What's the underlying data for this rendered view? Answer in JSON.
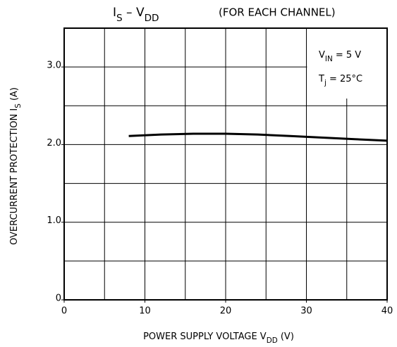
{
  "chart_data": {
    "type": "line",
    "title": [
      {
        "text": "I"
      },
      {
        "text": "S",
        "sub": true
      },
      {
        "text": " – V"
      },
      {
        "text": "DD",
        "sub": true
      }
    ],
    "subtitle": "(FOR EACH CHANNEL)",
    "xlabel": [
      {
        "text": "POWER SUPPLY VOLTAGE  V"
      },
      {
        "text": "DD",
        "sub": true
      },
      {
        "text": "  (V)"
      }
    ],
    "ylabel": [
      {
        "text": "OVERCURRENT  PROTECTION  I"
      },
      {
        "text": "S",
        "sub": true
      },
      {
        "text": "  (A)"
      }
    ],
    "annotations": [
      [
        {
          "text": "V"
        },
        {
          "text": "IN",
          "sub": true
        },
        {
          "text": " = 5 V"
        }
      ],
      [
        {
          "text": "T"
        },
        {
          "text": "j",
          "sub": true
        },
        {
          "text": " = 25°C"
        }
      ]
    ],
    "x": [
      8,
      12,
      16,
      20,
      24,
      28,
      32,
      36,
      40
    ],
    "series": [
      {
        "color": "#000000",
        "values": [
          2.11,
          2.13,
          2.14,
          2.14,
          2.13,
          2.11,
          2.09,
          2.07,
          2.05
        ]
      }
    ],
    "xlim": [
      0,
      40
    ],
    "xticks": [
      0,
      10,
      20,
      30,
      40
    ],
    "xgrid": [
      5,
      10,
      15,
      20,
      25,
      30,
      35
    ],
    "ylim": [
      0,
      3.5
    ],
    "yticks": [
      0,
      {
        "value": 1,
        "label": "1.0"
      },
      {
        "value": 2,
        "label": "2.0"
      },
      {
        "value": 3,
        "label": "3.0"
      }
    ],
    "ygrid": [
      0.5,
      1,
      1.5,
      2,
      2.5,
      3
    ],
    "grid": true
  }
}
